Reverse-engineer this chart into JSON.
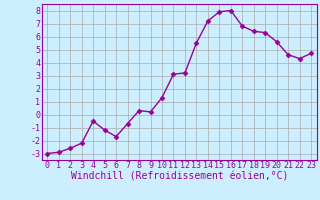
{
  "x": [
    0,
    1,
    2,
    3,
    4,
    5,
    6,
    7,
    8,
    9,
    10,
    11,
    12,
    13,
    14,
    15,
    16,
    17,
    18,
    19,
    20,
    21,
    22,
    23
  ],
  "y": [
    -3.0,
    -2.9,
    -2.6,
    -2.2,
    -0.5,
    -1.2,
    -1.7,
    -0.7,
    0.3,
    0.2,
    1.3,
    3.1,
    3.2,
    5.5,
    7.2,
    7.9,
    8.0,
    6.8,
    6.4,
    6.3,
    5.6,
    4.6,
    4.3,
    4.7
  ],
  "line_color": "#990099",
  "marker": "D",
  "marker_size": 2.5,
  "linewidth": 1.0,
  "xlabel": "Windchill (Refroidissement éolien,°C)",
  "xlabel_fontsize": 7,
  "xlim": [
    -0.5,
    23.5
  ],
  "ylim": [
    -3.5,
    8.5
  ],
  "yticks": [
    -3,
    -2,
    -1,
    0,
    1,
    2,
    3,
    4,
    5,
    6,
    7,
    8
  ],
  "xticks": [
    0,
    1,
    2,
    3,
    4,
    5,
    6,
    7,
    8,
    9,
    10,
    11,
    12,
    13,
    14,
    15,
    16,
    17,
    18,
    19,
    20,
    21,
    22,
    23
  ],
  "grid_color": "#aaaaaa",
  "bg_color": "#cceeff",
  "tick_fontsize": 6,
  "fig_bg": "#cceeff"
}
